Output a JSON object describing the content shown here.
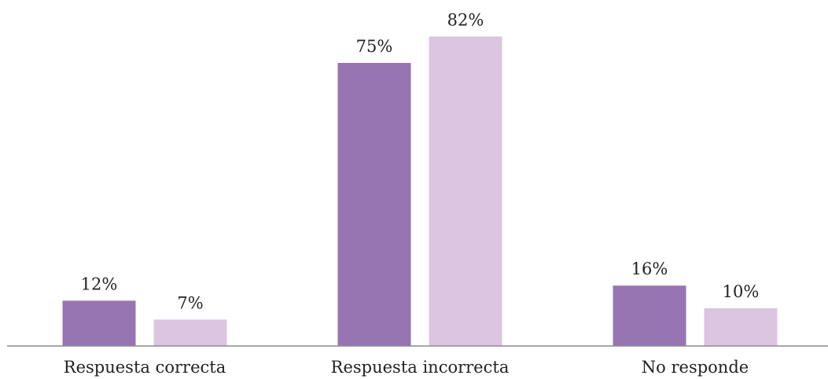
{
  "chart_data": {
    "type": "bar",
    "title": "",
    "xlabel": "",
    "ylabel": "",
    "ylim": [
      0,
      100
    ],
    "grid": false,
    "categories": [
      "Respuesta correcta",
      "Respuesta incorrecta",
      "No responde"
    ],
    "series": [
      {
        "values": [
          12,
          75,
          16
        ],
        "labels": [
          "12%",
          "75%",
          "16%"
        ],
        "color": "#9775b3"
      },
      {
        "values": [
          7,
          82,
          10
        ],
        "labels": [
          "7%",
          "82%",
          "10%"
        ],
        "color": "#dcc5e1"
      }
    ],
    "axis_color": "#8c8c8c"
  }
}
